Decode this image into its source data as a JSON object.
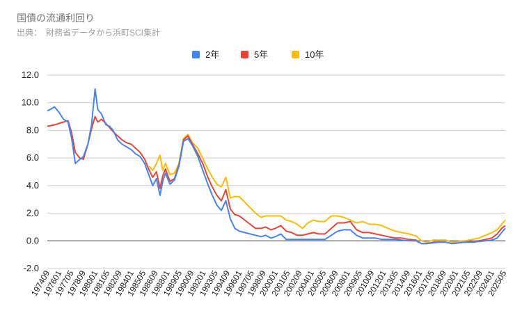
{
  "chart_data": {
    "type": "line",
    "title": "国債の流通利回り",
    "subtitle": "出典：　財務省データから浜町SCI集計",
    "legend_position": "top",
    "ylim": [
      -2.0,
      12.0
    ],
    "y_ticks": [
      "12.0",
      "10.0",
      "8.0",
      "6.0",
      "4.0",
      "2.0",
      "0.0",
      "-2.0"
    ],
    "y_tick_values": [
      12,
      10,
      8,
      6,
      4,
      2,
      0,
      -2
    ],
    "grid": true,
    "x_ticks": [
      "197409",
      "197601",
      "197705",
      "197809",
      "198001",
      "198105",
      "198209",
      "198401",
      "198505",
      "198609",
      "198801",
      "198905",
      "199009",
      "199201",
      "199305",
      "199409",
      "199601",
      "199705",
      "199809",
      "200001",
      "200105",
      "200209",
      "200401",
      "200505",
      "200609",
      "200801",
      "200905",
      "201009",
      "201201",
      "201305",
      "201409",
      "201601",
      "201705",
      "201809",
      "202001",
      "202105",
      "202209",
      "202401",
      "202505"
    ],
    "x": [
      1974.7,
      1975.5,
      1976.0,
      1976.5,
      1977.0,
      1977.4,
      1977.8,
      1978.3,
      1978.7,
      1979.2,
      1979.6,
      1980.0,
      1980.3,
      1980.7,
      1981.2,
      1981.6,
      1982.0,
      1982.5,
      1983.0,
      1983.5,
      1984.0,
      1984.5,
      1985.0,
      1985.5,
      1986.0,
      1986.4,
      1986.8,
      1987.2,
      1987.5,
      1987.8,
      1988.3,
      1988.8,
      1989.3,
      1989.8,
      1990.3,
      1990.8,
      1991.4,
      1992.0,
      1992.5,
      1993.0,
      1993.5,
      1994.0,
      1994.5,
      1995.0,
      1995.5,
      1996.0,
      1996.6,
      1997.2,
      1997.8,
      1998.4,
      1998.9,
      1999.5,
      2000.0,
      2000.6,
      2001.2,
      2001.8,
      2002.4,
      2003.0,
      2003.6,
      2004.2,
      2004.8,
      2005.5,
      2006.2,
      2006.9,
      2007.6,
      2008.3,
      2009.0,
      2009.7,
      2010.4,
      2011.1,
      2011.8,
      2012.5,
      2013.3,
      2014.0,
      2014.8,
      2015.6,
      2016.2,
      2016.8,
      2017.5,
      2018.2,
      2018.9,
      2019.6,
      2020.3,
      2021.0,
      2021.8,
      2022.6,
      2023.3,
      2024.0,
      2024.6,
      2025.1,
      2025.5
    ],
    "series": [
      {
        "name": "2年",
        "color": "#4285f4",
        "values": [
          9.4,
          9.7,
          9.3,
          8.8,
          8.6,
          7.4,
          5.6,
          5.9,
          6.1,
          7.0,
          8.4,
          11.0,
          9.5,
          9.2,
          8.4,
          8.3,
          8.0,
          7.3,
          7.0,
          6.8,
          6.6,
          6.3,
          6.1,
          5.6,
          4.7,
          4.0,
          4.5,
          3.3,
          4.3,
          4.9,
          4.1,
          4.4,
          5.4,
          7.2,
          7.4,
          6.9,
          6.1,
          5.0,
          4.1,
          3.3,
          2.6,
          2.2,
          2.9,
          1.6,
          0.9,
          0.7,
          0.6,
          0.5,
          0.4,
          0.3,
          0.4,
          0.2,
          0.3,
          0.5,
          0.1,
          0.1,
          0.1,
          0.1,
          0.1,
          0.1,
          0.1,
          0.1,
          0.4,
          0.7,
          0.8,
          0.8,
          0.4,
          0.2,
          0.2,
          0.2,
          0.1,
          0.1,
          0.1,
          0.05,
          0.0,
          0.0,
          -0.2,
          -0.2,
          -0.15,
          -0.1,
          -0.1,
          -0.2,
          -0.15,
          -0.1,
          -0.1,
          -0.05,
          0.0,
          0.05,
          0.2,
          0.6,
          0.9
        ]
      },
      {
        "name": "5年",
        "color": "#ea4335",
        "values": [
          8.3,
          8.4,
          8.5,
          8.6,
          8.7,
          7.8,
          6.4,
          6.0,
          5.9,
          7.0,
          8.1,
          9.0,
          8.6,
          8.8,
          8.5,
          8.2,
          7.9,
          7.6,
          7.3,
          7.1,
          7.0,
          6.7,
          6.4,
          5.9,
          5.1,
          4.6,
          5.0,
          3.8,
          4.7,
          5.2,
          4.3,
          4.5,
          5.5,
          7.3,
          7.6,
          7.0,
          6.3,
          5.5,
          4.6,
          3.9,
          3.3,
          2.9,
          3.7,
          2.3,
          1.9,
          1.8,
          1.5,
          1.2,
          0.9,
          0.9,
          1.0,
          0.8,
          0.9,
          1.1,
          0.7,
          0.6,
          0.4,
          0.4,
          0.5,
          0.6,
          0.5,
          0.5,
          0.9,
          1.3,
          1.3,
          1.4,
          0.8,
          0.6,
          0.6,
          0.5,
          0.4,
          0.3,
          0.2,
          0.2,
          0.1,
          0.05,
          -0.2,
          -0.2,
          -0.1,
          -0.1,
          -0.1,
          -0.2,
          -0.15,
          -0.1,
          -0.05,
          0.0,
          0.1,
          0.2,
          0.5,
          0.9,
          1.1
        ]
      },
      {
        "name": "10年",
        "color": "#fbbc04",
        "values": [
          null,
          null,
          null,
          null,
          null,
          null,
          null,
          null,
          null,
          null,
          null,
          null,
          null,
          null,
          null,
          null,
          null,
          null,
          null,
          null,
          null,
          null,
          null,
          null,
          5.4,
          5.1,
          5.6,
          6.2,
          5.1,
          5.6,
          4.8,
          4.9,
          5.6,
          7.4,
          7.7,
          7.1,
          6.7,
          5.9,
          5.2,
          4.6,
          4.1,
          3.9,
          4.6,
          3.1,
          3.2,
          3.2,
          2.8,
          2.4,
          2.0,
          1.7,
          1.8,
          1.8,
          1.8,
          1.8,
          1.5,
          1.4,
          1.2,
          0.9,
          1.3,
          1.5,
          1.4,
          1.4,
          1.8,
          1.8,
          1.7,
          1.5,
          1.3,
          1.4,
          1.2,
          1.2,
          1.1,
          0.9,
          0.7,
          0.6,
          0.5,
          0.35,
          0.0,
          -0.1,
          0.05,
          0.05,
          0.05,
          -0.1,
          -0.05,
          0.0,
          0.1,
          0.2,
          0.4,
          0.6,
          0.8,
          1.2,
          1.5
        ]
      }
    ]
  }
}
